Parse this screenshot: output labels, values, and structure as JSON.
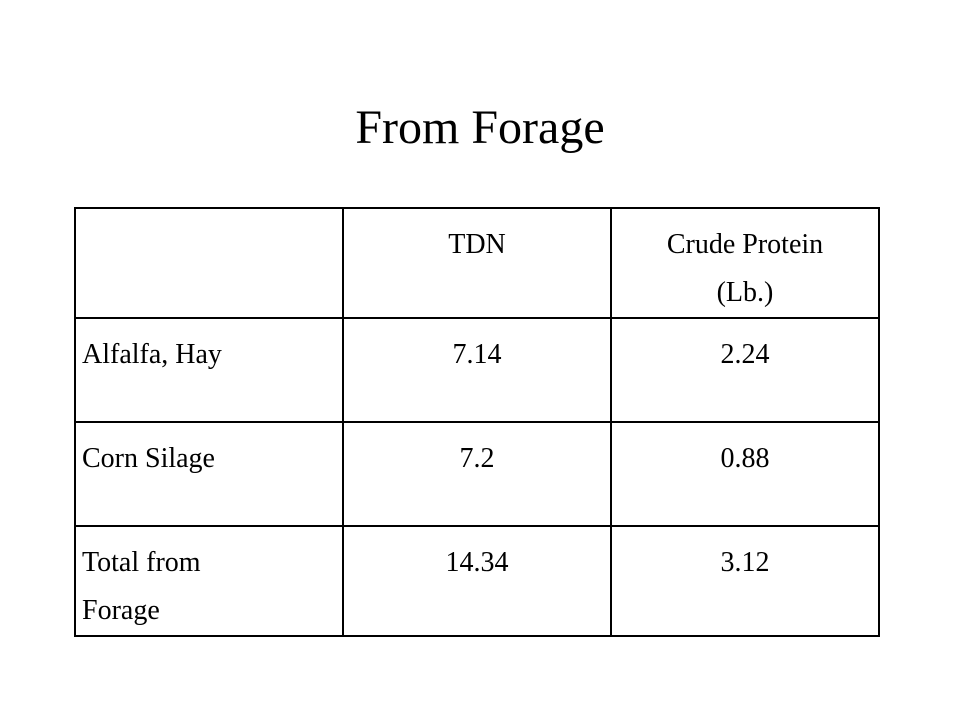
{
  "title": "From Forage",
  "table": {
    "header": [
      null,
      "TDN",
      "Crude Protein (Lb.)"
    ],
    "rows": [
      [
        "Alfalfa, Hay",
        7.14,
        2.24
      ],
      [
        "Corn Silage",
        7.2,
        0.88
      ],
      [
        "Total from Forage",
        14.34,
        3.12
      ]
    ]
  }
}
